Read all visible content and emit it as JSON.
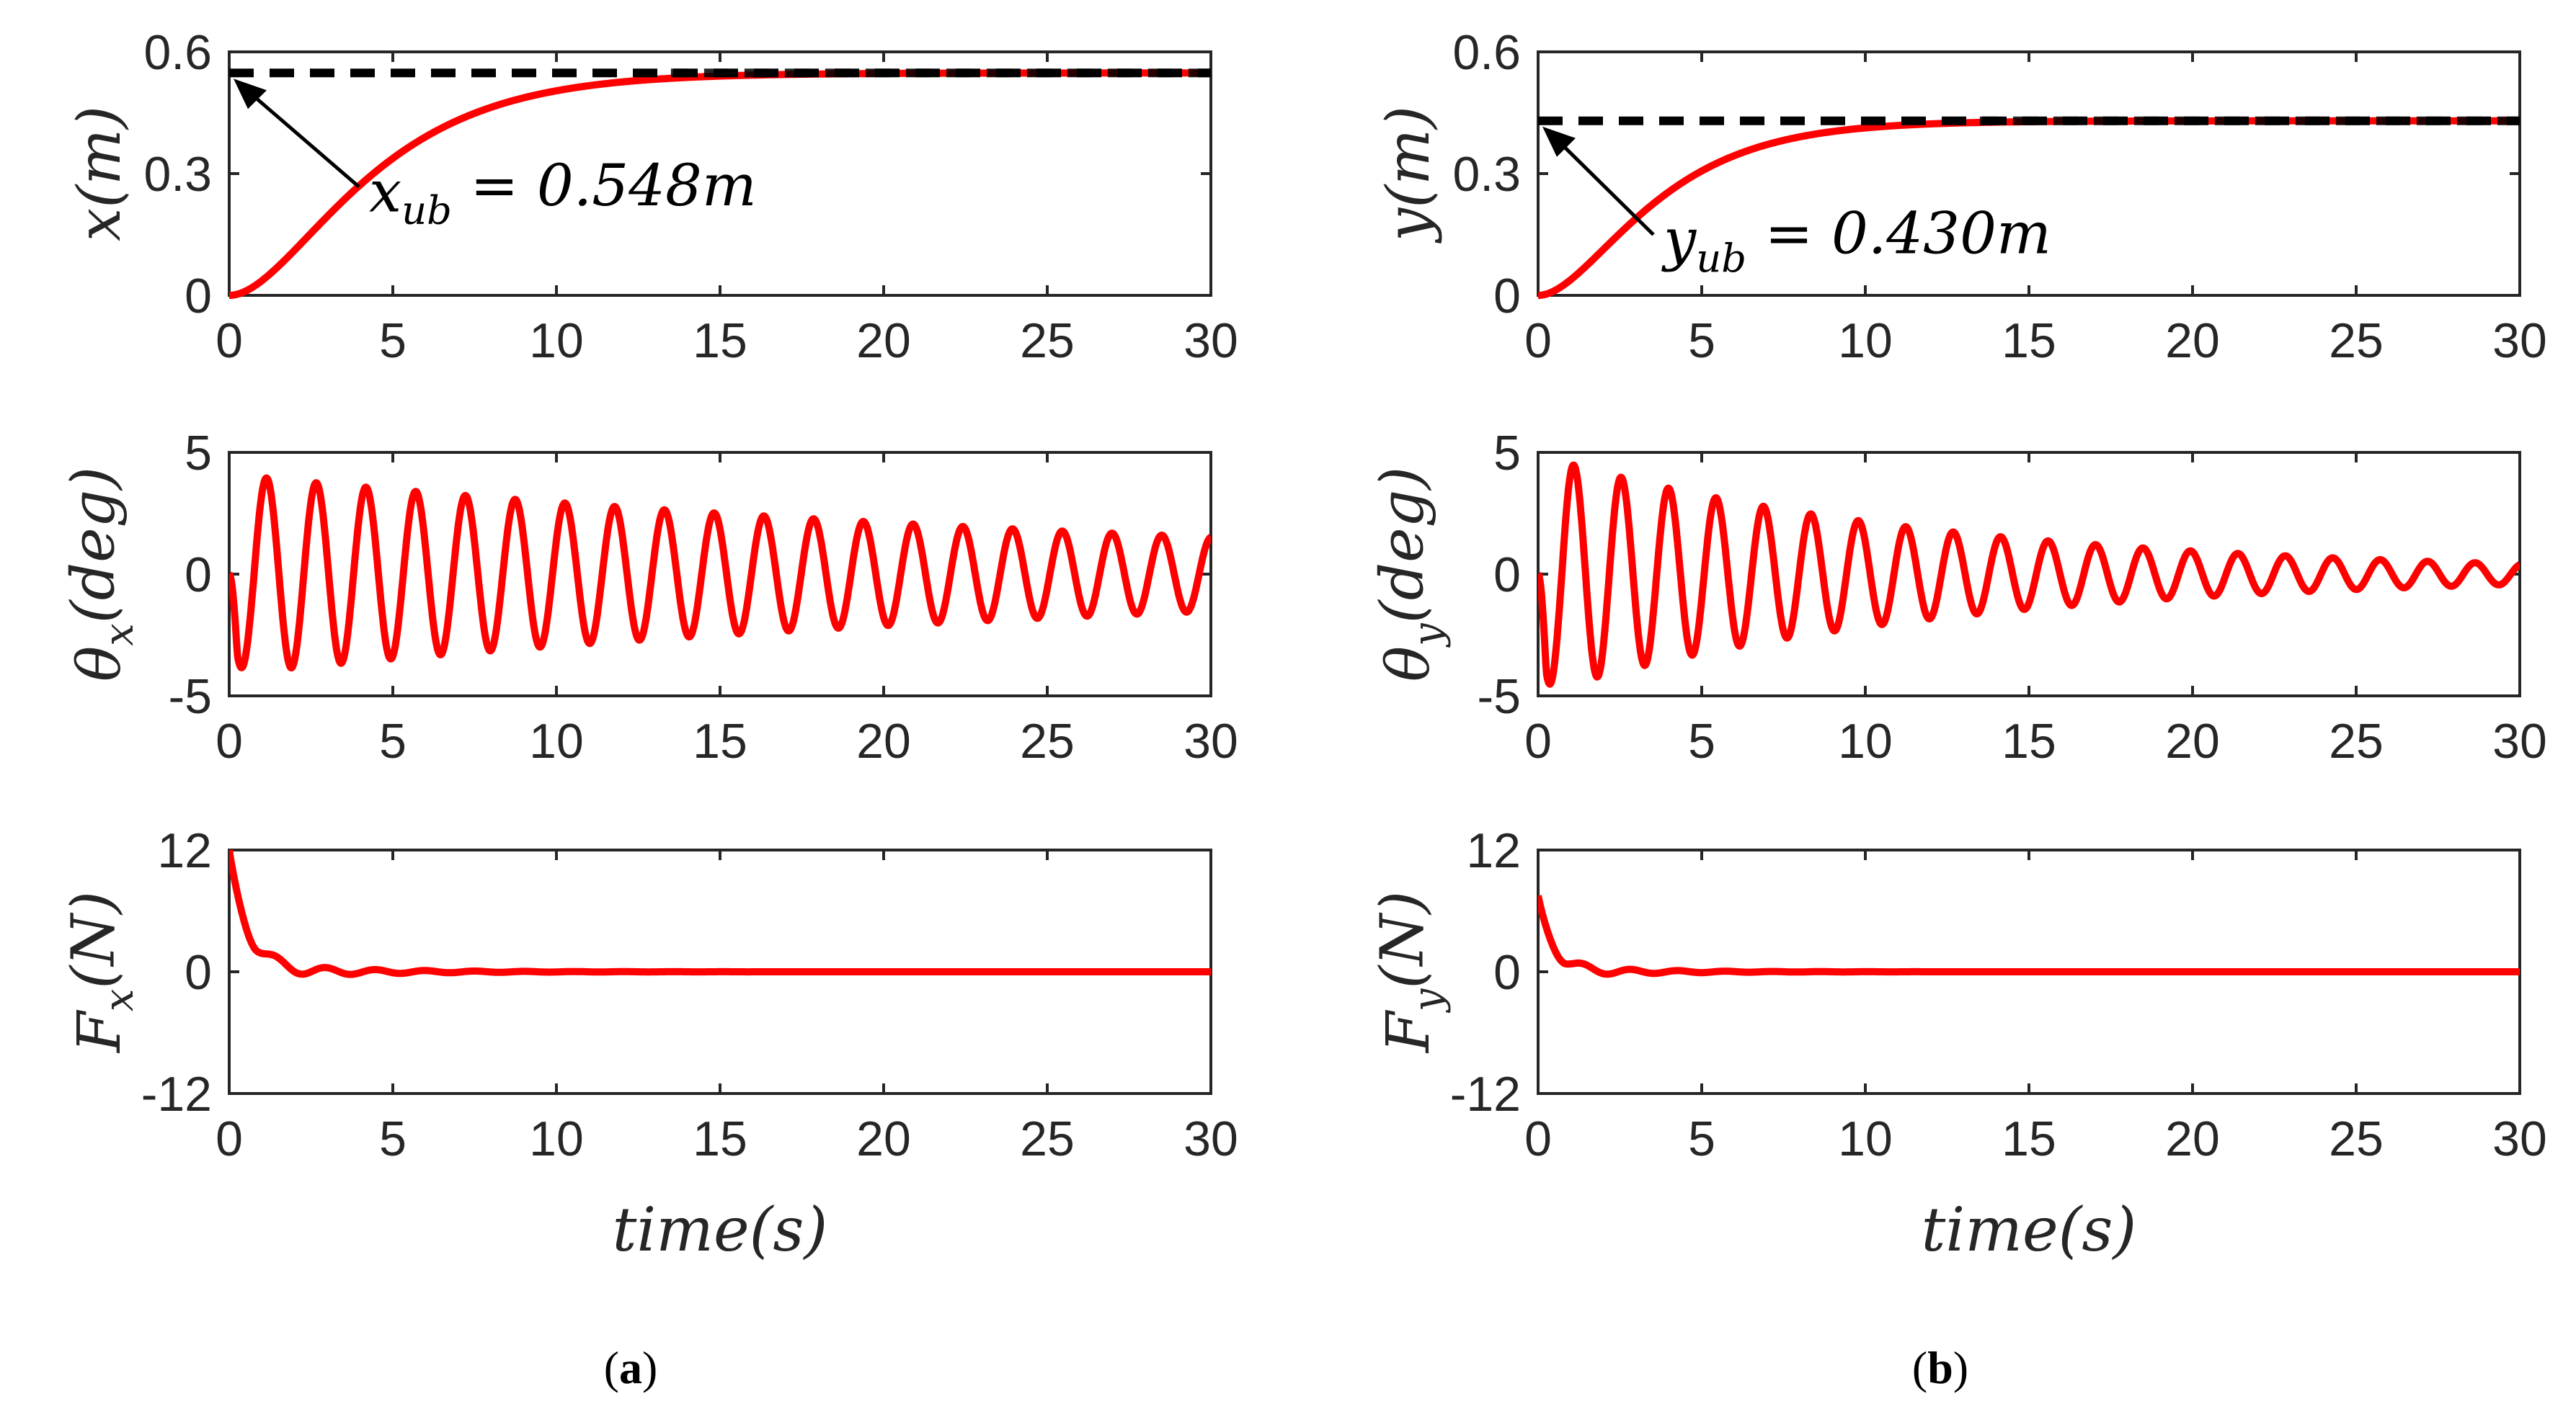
{
  "chart_data": [
    {
      "type": "line",
      "panel": "a",
      "row": 0,
      "ylabel": "x(m)",
      "xlabel": "",
      "xlim": [
        0,
        30
      ],
      "ylim": [
        0,
        0.6
      ],
      "xticks": [
        "0",
        "5",
        "10",
        "15",
        "20",
        "25",
        "30"
      ],
      "yticks": [
        {
          "v": 0,
          "label": "0"
        },
        {
          "v": 0.3,
          "label": "0.3"
        },
        {
          "v": 0.6,
          "label": "0.6"
        }
      ],
      "annotation": {
        "text": "x_ub = 0.548m",
        "x": 0,
        "y": 0.548
      },
      "series": [
        {
          "name": "x(t)",
          "color": "#ff0000",
          "style": "solid",
          "model": "settle",
          "final": 0.548,
          "tau": 2.4
        },
        {
          "name": "x_ub",
          "color": "#000000",
          "style": "dashed",
          "const": 0.548
        }
      ]
    },
    {
      "type": "line",
      "panel": "a",
      "row": 1,
      "ylabel": "θx(deg)",
      "xlabel": "",
      "xlim": [
        0,
        30
      ],
      "ylim": [
        -5,
        5
      ],
      "xticks": [
        "0",
        "5",
        "10",
        "15",
        "20",
        "25",
        "30"
      ],
      "yticks": [
        {
          "v": -5,
          "label": "-5"
        },
        {
          "v": 0,
          "label": "0"
        },
        {
          "v": 5,
          "label": "5"
        }
      ],
      "series": [
        {
          "name": "θx(t)",
          "color": "#ff0000",
          "style": "solid",
          "model": "osc",
          "amp": 4.1,
          "decay": 0.033,
          "period": 1.52,
          "shift": 0.7
        }
      ]
    },
    {
      "type": "line",
      "panel": "a",
      "row": 2,
      "ylabel": "Fx(N)",
      "xlabel": "time(s)",
      "xlim": [
        0,
        30
      ],
      "ylim": [
        -12,
        12
      ],
      "xticks": [
        "0",
        "5",
        "10",
        "15",
        "20",
        "25",
        "30"
      ],
      "yticks": [
        {
          "v": -12,
          "label": "-12"
        },
        {
          "v": 0,
          "label": "0"
        },
        {
          "v": 12,
          "label": "12"
        }
      ],
      "series": [
        {
          "name": "Fx(t)",
          "color": "#ff0000",
          "style": "solid",
          "model": "force",
          "f0": 12,
          "fdecay": 1.8,
          "oamp": 1.0,
          "odecay": 0.35,
          "period": 1.52,
          "shift": 0.8
        }
      ]
    },
    {
      "type": "line",
      "panel": "b",
      "row": 0,
      "ylabel": "y(m)",
      "xlabel": "",
      "xlim": [
        0,
        30
      ],
      "ylim": [
        0,
        0.6
      ],
      "xticks": [
        "0",
        "5",
        "10",
        "15",
        "20",
        "25",
        "30"
      ],
      "yticks": [
        {
          "v": 0,
          "label": "0"
        },
        {
          "v": 0.3,
          "label": "0.3"
        },
        {
          "v": 0.6,
          "label": "0.6"
        }
      ],
      "annotation": {
        "text": "y_ub = 0.430m",
        "x": 0,
        "y": 0.43
      },
      "series": [
        {
          "name": "y(t)",
          "color": "#ff0000",
          "style": "solid",
          "model": "settle",
          "final": 0.43,
          "tau": 2.0
        },
        {
          "name": "y_ub",
          "color": "#000000",
          "style": "dashed",
          "const": 0.43
        }
      ]
    },
    {
      "type": "line",
      "panel": "b",
      "row": 1,
      "ylabel": "θy(deg)",
      "xlabel": "",
      "xlim": [
        0,
        30
      ],
      "ylim": [
        -5,
        5
      ],
      "xticks": [
        "0",
        "5",
        "10",
        "15",
        "20",
        "25",
        "30"
      ],
      "yticks": [
        {
          "v": -5,
          "label": "-5"
        },
        {
          "v": 0,
          "label": "0"
        },
        {
          "v": 5,
          "label": "5"
        }
      ],
      "series": [
        {
          "name": "θy(t)",
          "color": "#ff0000",
          "style": "solid",
          "model": "osc",
          "amp": 4.9,
          "decay": 0.082,
          "period": 1.45,
          "shift": 0.62
        }
      ]
    },
    {
      "type": "line",
      "panel": "b",
      "row": 2,
      "ylabel": "Fy(N)",
      "xlabel": "time(s)",
      "xlim": [
        0,
        30
      ],
      "ylim": [
        -12,
        12
      ],
      "xticks": [
        "0",
        "5",
        "10",
        "15",
        "20",
        "25",
        "30"
      ],
      "yticks": [
        {
          "v": -12,
          "label": "-12"
        },
        {
          "v": 0,
          "label": "0"
        },
        {
          "v": 12,
          "label": "12"
        }
      ],
      "series": [
        {
          "name": "Fy(t)",
          "color": "#ff0000",
          "style": "solid",
          "model": "force",
          "f0": 7.5,
          "fdecay": 2.2,
          "oamp": 0.8,
          "odecay": 0.45,
          "period": 1.45,
          "shift": 0.8
        }
      ]
    }
  ],
  "captions": {
    "a": "(a)",
    "b": "(b)"
  }
}
